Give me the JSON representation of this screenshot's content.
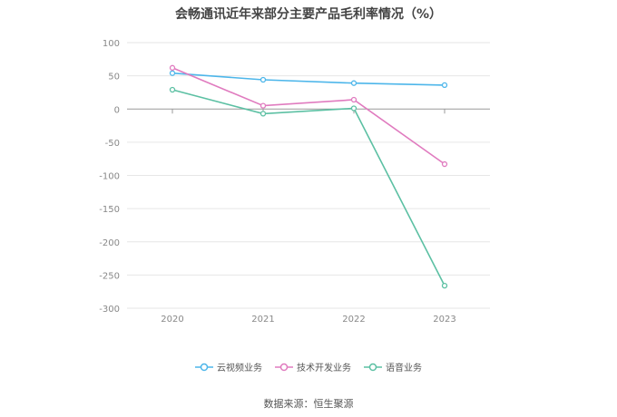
{
  "chart_data": {
    "type": "line",
    "title": "会畅通讯近年来部分主要产品毛利率情况（%）",
    "categories": [
      "2020",
      "2021",
      "2022",
      "2023"
    ],
    "y_ticks": [
      "100",
      "50",
      "0",
      "-50",
      "-100",
      "-150",
      "-200",
      "-250",
      "-300"
    ],
    "ylim": [
      -300,
      100
    ],
    "grid": true,
    "legend_position": "bottom",
    "series": [
      {
        "name": "云视频业务",
        "color": "#4db6ea",
        "values": [
          54,
          44,
          39,
          36
        ]
      },
      {
        "name": "技术开发业务",
        "color": "#e07bbf",
        "values": [
          62,
          5,
          14,
          -83
        ]
      },
      {
        "name": "语音业务",
        "color": "#5cc0a3",
        "values": [
          29,
          -7,
          1,
          -266
        ]
      }
    ]
  },
  "source": "数据来源：恒生聚源"
}
